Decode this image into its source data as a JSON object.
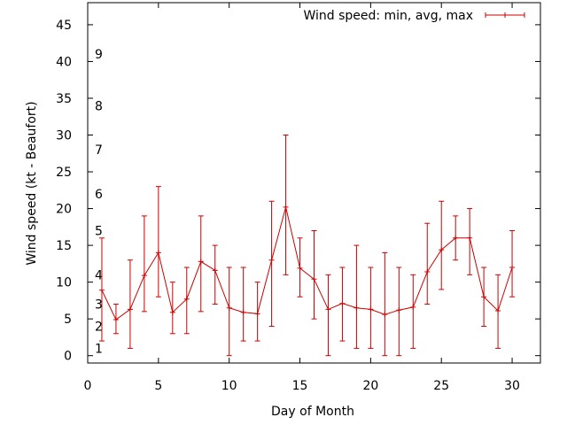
{
  "chart_data": {
    "type": "line",
    "title": "",
    "xlabel": "Day of Month",
    "ylabel": "Wind speed (kt - Beaufort)",
    "xlim": [
      0,
      32
    ],
    "ylim": [
      -1,
      48
    ],
    "xticks": [
      0,
      5,
      10,
      15,
      20,
      25,
      30
    ],
    "yticks": [
      0,
      5,
      10,
      15,
      20,
      25,
      30,
      35,
      40,
      45
    ],
    "grid": false,
    "legend": {
      "position": "top-right",
      "label": "Wind speed: min, avg, max"
    },
    "colors": {
      "series": "#cc0000",
      "axis": "#000000"
    },
    "series": [
      {
        "name": "Wind speed: min, avg, max",
        "x": [
          1,
          2,
          3,
          4,
          5,
          6,
          7,
          8,
          9,
          10,
          11,
          12,
          13,
          14,
          15,
          16,
          17,
          18,
          19,
          20,
          21,
          22,
          23,
          24,
          25,
          26,
          27,
          28,
          29,
          30
        ],
        "avg": [
          8.9,
          4.9,
          6.3,
          10.9,
          14.0,
          5.9,
          7.7,
          12.8,
          11.6,
          6.5,
          5.9,
          5.7,
          13.0,
          20.2,
          11.9,
          10.4,
          6.3,
          7.1,
          6.5,
          6.3,
          5.6,
          6.2,
          6.6,
          11.4,
          14.4,
          16.0,
          16.0,
          8.0,
          6.1,
          12.0
        ],
        "min": [
          2,
          3,
          1,
          6,
          8,
          3,
          3,
          6,
          7,
          0,
          2,
          2,
          4,
          11,
          8,
          5,
          0,
          2,
          1,
          1,
          0,
          0,
          1,
          7,
          9,
          13,
          11,
          4,
          1,
          8
        ],
        "max": [
          16,
          7,
          13,
          19,
          23,
          10,
          12,
          19,
          15,
          12,
          12,
          10,
          21,
          30,
          16,
          17,
          11,
          12,
          15,
          12,
          14,
          12,
          11,
          18,
          21,
          19,
          20,
          12,
          11,
          17
        ]
      }
    ],
    "beaufort_labels": [
      {
        "label": "1",
        "y": 1
      },
      {
        "label": "2",
        "y": 4
      },
      {
        "label": "3",
        "y": 7
      },
      {
        "label": "4",
        "y": 11
      },
      {
        "label": "5",
        "y": 17
      },
      {
        "label": "6",
        "y": 22
      },
      {
        "label": "7",
        "y": 28
      },
      {
        "label": "8",
        "y": 34
      },
      {
        "label": "9",
        "y": 41
      }
    ]
  }
}
